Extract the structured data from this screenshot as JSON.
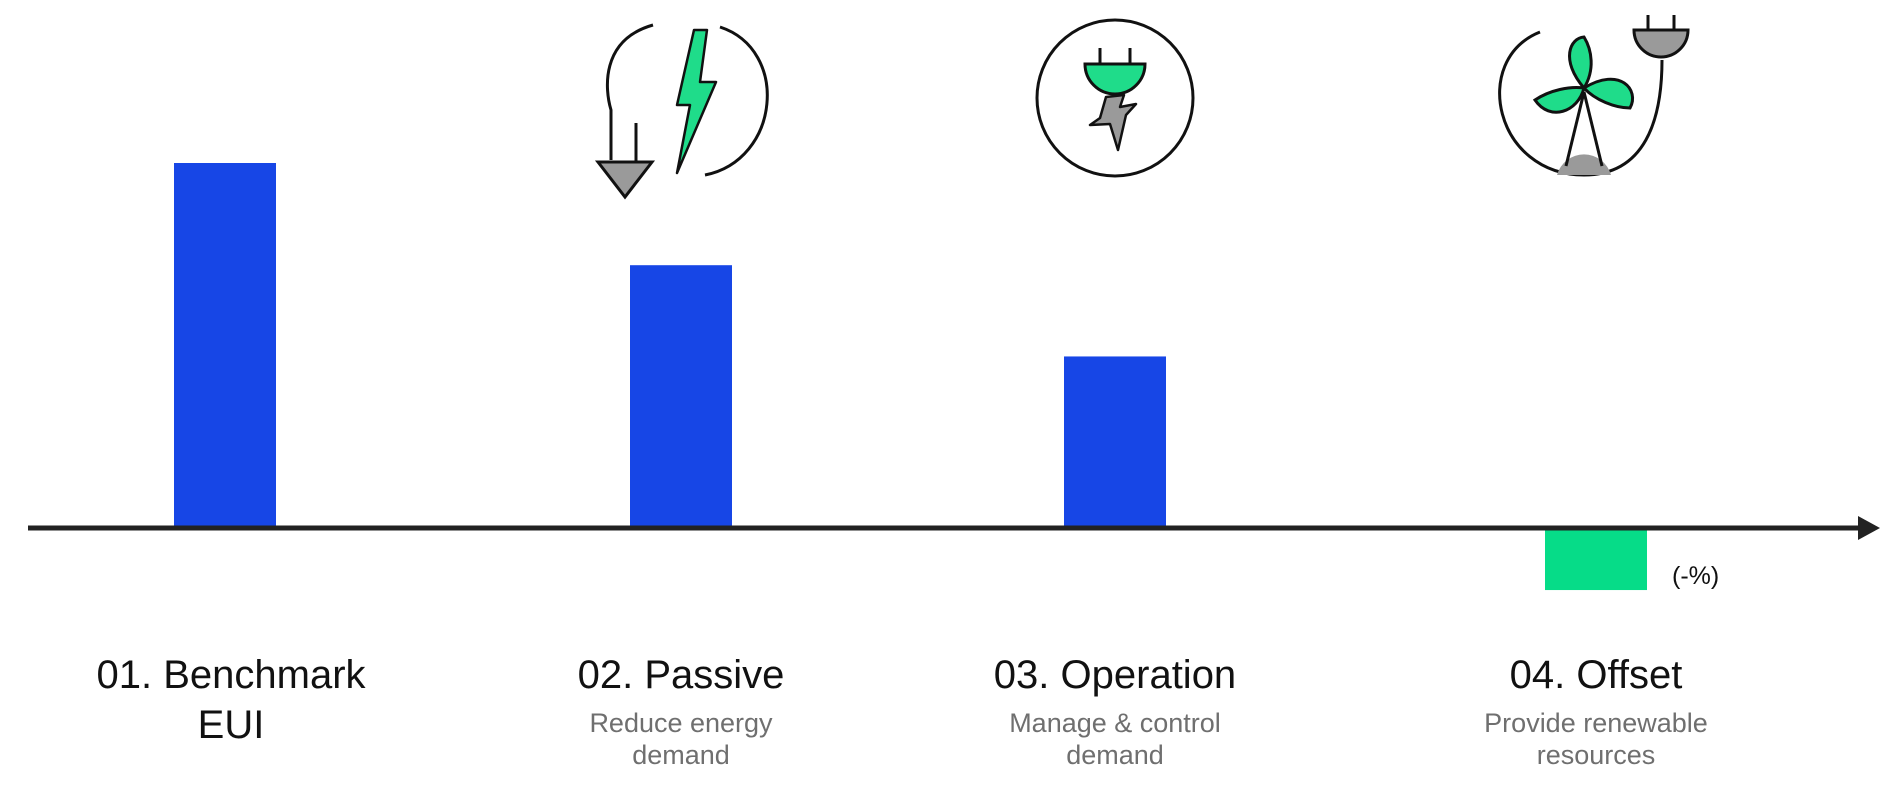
{
  "colors": {
    "bar": "#1746e6",
    "offset": "#06dc88",
    "icon_green": "#1fdc8a",
    "icon_grey": "#9a9a9a",
    "axis": "#222222",
    "subtitle": "#6f6f6f"
  },
  "chart_data": {
    "type": "bar",
    "title": "",
    "xlabel": "",
    "ylabel": "",
    "ylim": [
      -20,
      100
    ],
    "grid": false,
    "categories": [
      "01. Benchmark EUI",
      "02. Passive",
      "03. Operation",
      "04. Offset"
    ],
    "values": [
      100,
      72,
      47,
      -17
    ],
    "negative_axis_label": "(-%)"
  },
  "stages": [
    {
      "title_line1": "01. Benchmark",
      "title_line2": "EUI",
      "subtitle_line1": "",
      "subtitle_line2": "",
      "icon": ""
    },
    {
      "title_line1": "02. Passive",
      "title_line2": "",
      "subtitle_line1": "Reduce energy",
      "subtitle_line2": "demand",
      "icon": "lightning-reduce-icon"
    },
    {
      "title_line1": "03. Operation",
      "title_line2": "",
      "subtitle_line1": "Manage & control",
      "subtitle_line2": "demand",
      "icon": "plug-lightning-icon"
    },
    {
      "title_line1": "04. Offset",
      "title_line2": "",
      "subtitle_line1": "Provide renewable",
      "subtitle_line2": "resources",
      "icon": "wind-turbine-plug-icon"
    }
  ]
}
